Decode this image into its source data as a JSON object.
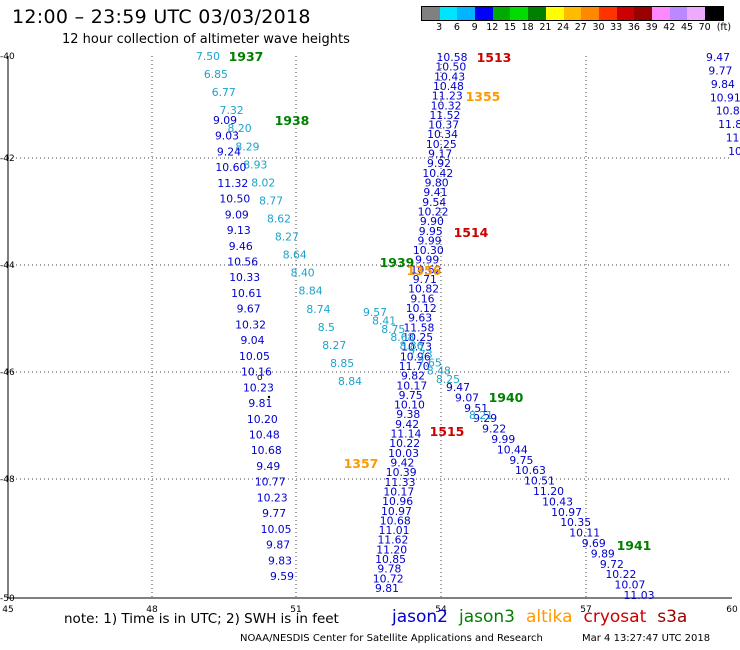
{
  "header": {
    "title": "12:00 – 23:59 UTC 03/03/2018",
    "subtitle": "12 hour collection of altimeter wave heights"
  },
  "legend": {
    "unit": "(ft)",
    "colors": [
      "#808080",
      "#00e5ff",
      "#00b4ff",
      "#0000ff",
      "#00aa00",
      "#00dd00",
      "#008000",
      "#ffff00",
      "#ffbb00",
      "#ff8800",
      "#ff3300",
      "#cc0000",
      "#990000",
      "#ff88ff",
      "#bb88ff",
      "#eeaaff",
      "#000000"
    ],
    "labels": [
      "3",
      "6",
      "9",
      "12",
      "15",
      "18",
      "21",
      "24",
      "27",
      "30",
      "33",
      "36",
      "39",
      "42",
      "45",
      "70"
    ]
  },
  "map": {
    "lat_labels": [
      "-40",
      "-42",
      "-44",
      "-46",
      "-48",
      "-50"
    ],
    "lon_labels": [
      "45",
      "48",
      "51",
      "54",
      "57",
      "60"
    ],
    "pass_labels": [
      {
        "text": "1937",
        "color": "#008000"
      },
      {
        "text": "1938",
        "color": "#008000"
      },
      {
        "text": "1939",
        "color": "#008000"
      },
      {
        "text": "1940",
        "color": "#008000"
      },
      {
        "text": "1941",
        "color": "#008000"
      },
      {
        "text": "1513",
        "color": "#cc0000"
      },
      {
        "text": "1514",
        "color": "#cc0000"
      },
      {
        "text": "1515",
        "color": "#cc0000"
      },
      {
        "text": "1355",
        "color": "#ff9900"
      },
      {
        "text": "1356",
        "color": "#ff9900"
      },
      {
        "text": "1357",
        "color": "#ff9900"
      }
    ],
    "tracks": {
      "track_a_cyan": [
        "7.50",
        "6.85",
        "6.77",
        "7.32",
        "8.20",
        "8.29",
        "8.93",
        "8.02",
        "8.77",
        "8.62",
        "8.27",
        "8.64",
        "8.40",
        "8.84",
        "8.74",
        "8.5",
        "8.27",
        "8.85",
        "8.84"
      ],
      "track_a_blue": [
        "9.09",
        "9.03",
        "9.24",
        "10.60",
        "11.32",
        "10.50",
        "9.09",
        "9.13",
        "9.46",
        "10.56",
        "10.33",
        "10.61",
        "9.67",
        "10.32",
        "9.04",
        "10.05",
        "10.16",
        "10.23",
        "9.81",
        "10.20",
        "10.48",
        "10.68",
        "9.49",
        "10.77",
        "10.23",
        "9.77",
        "10.05",
        "9.87",
        "9.83",
        "9.59"
      ],
      "track_b_blue": [
        "10.58",
        "10.50",
        "10.43",
        "10.48",
        "11.23",
        "10.32",
        "11.52",
        "10.37",
        "10.34",
        "10.25",
        "9.17",
        "9.92",
        "10.42",
        "9.80",
        "9.41",
        "9.54",
        "10.22",
        "9.90",
        "9.95",
        "9.99",
        "10.30",
        "9.99",
        "10.62",
        "9.71",
        "10.82",
        "9.16",
        "10.12",
        "9.63",
        "11.58",
        "10.25",
        "10.73",
        "10.96",
        "11.70",
        "9.82",
        "10.17",
        "9.75",
        "10.10",
        "9.38",
        "9.42",
        "11.14",
        "10.22",
        "10.03",
        "9.42",
        "10.39",
        "11.33",
        "10.17",
        "10.96",
        "10.97",
        "10.68",
        "11.01",
        "11.62",
        "11.20",
        "10.85",
        "9.78",
        "10.72",
        "9.81"
      ],
      "track_b_cyan": [
        "9.57",
        "8.41",
        "8.75",
        "8.68",
        "8.86",
        "7.73",
        "7.65",
        "8.48",
        "8.25"
      ],
      "track_c_blue": [
        "9.47",
        "9.07",
        "9.51",
        "9.29",
        "9.22",
        "9.99",
        "10.44",
        "9.75",
        "10.63",
        "10.51",
        "11.20",
        "10.43",
        "10.97",
        "10.35",
        "10.11",
        "9.69",
        "9.89",
        "9.72",
        "10.22",
        "10.07",
        "11.03"
      ],
      "track_c_cyan": [
        "8.21"
      ],
      "track_d_blue": [
        "9.47",
        "9.77",
        "9.84",
        "10.91",
        "10.8",
        "11.8",
        "11",
        "10"
      ]
    }
  },
  "footer": {
    "note": "note:  1) Time is in UTC;  2) SWH is in feet",
    "satellites": [
      {
        "name": "jason2",
        "color": "#0000cc"
      },
      {
        "name": "jason3",
        "color": "#008000"
      },
      {
        "name": "altika",
        "color": "#ff9900"
      },
      {
        "name": "cryosat",
        "color": "#cc0000"
      },
      {
        "name": "s3a",
        "color": "#990000"
      }
    ],
    "credit": "NOAA/NESDIS Center for Satellite Applications and Research",
    "timestamp": "Mar  4 13:27:47 UTC 2018"
  }
}
